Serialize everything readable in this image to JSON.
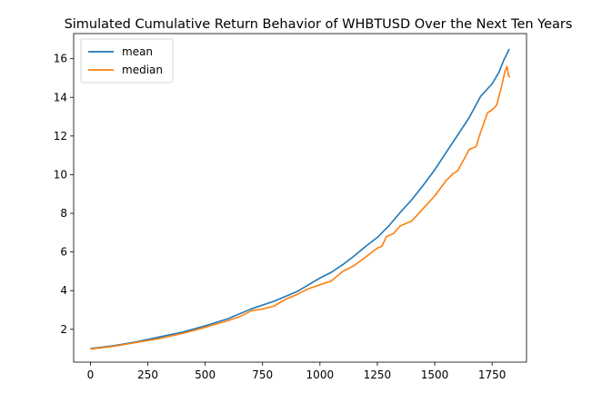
{
  "chart_data": {
    "type": "line",
    "title": "Simulated Cumulative Return Behavior of WHBTUSD Over the Next Ten Years",
    "xlabel": "",
    "ylabel": "",
    "xlim": [
      -73,
      1900
    ],
    "ylim": [
      0.3,
      17.3
    ],
    "xticks": [
      0,
      250,
      500,
      750,
      1000,
      1250,
      1500,
      1750
    ],
    "yticks": [
      2,
      4,
      6,
      8,
      10,
      12,
      14,
      16
    ],
    "grid": false,
    "legend": "top-left",
    "series": [
      {
        "name": "mean",
        "color": "#1f77b4",
        "points": [
          [
            0,
            1.0
          ],
          [
            100,
            1.15
          ],
          [
            200,
            1.35
          ],
          [
            300,
            1.6
          ],
          [
            400,
            1.85
          ],
          [
            500,
            2.18
          ],
          [
            600,
            2.55
          ],
          [
            700,
            3.05
          ],
          [
            800,
            3.45
          ],
          [
            900,
            3.95
          ],
          [
            1000,
            4.65
          ],
          [
            1050,
            4.95
          ],
          [
            1100,
            5.35
          ],
          [
            1150,
            5.8
          ],
          [
            1200,
            6.3
          ],
          [
            1250,
            6.75
          ],
          [
            1300,
            7.35
          ],
          [
            1350,
            8.05
          ],
          [
            1400,
            8.7
          ],
          [
            1450,
            9.45
          ],
          [
            1500,
            10.25
          ],
          [
            1550,
            11.15
          ],
          [
            1600,
            12.05
          ],
          [
            1650,
            12.95
          ],
          [
            1700,
            14.05
          ],
          [
            1750,
            14.7
          ],
          [
            1780,
            15.3
          ],
          [
            1800,
            15.9
          ],
          [
            1825,
            16.5
          ]
        ]
      },
      {
        "name": "median",
        "color": "#ff7f0e",
        "points": [
          [
            0,
            0.98
          ],
          [
            100,
            1.12
          ],
          [
            200,
            1.32
          ],
          [
            300,
            1.52
          ],
          [
            400,
            1.78
          ],
          [
            500,
            2.1
          ],
          [
            600,
            2.45
          ],
          [
            650,
            2.65
          ],
          [
            700,
            2.95
          ],
          [
            750,
            3.05
          ],
          [
            800,
            3.2
          ],
          [
            850,
            3.55
          ],
          [
            900,
            3.8
          ],
          [
            950,
            4.1
          ],
          [
            1000,
            4.3
          ],
          [
            1050,
            4.5
          ],
          [
            1100,
            5.0
          ],
          [
            1150,
            5.3
          ],
          [
            1200,
            5.75
          ],
          [
            1250,
            6.2
          ],
          [
            1270,
            6.3
          ],
          [
            1290,
            6.8
          ],
          [
            1320,
            6.95
          ],
          [
            1350,
            7.35
          ],
          [
            1400,
            7.6
          ],
          [
            1450,
            8.25
          ],
          [
            1500,
            8.9
          ],
          [
            1550,
            9.7
          ],
          [
            1580,
            10.05
          ],
          [
            1600,
            10.2
          ],
          [
            1630,
            10.85
          ],
          [
            1650,
            11.3
          ],
          [
            1680,
            11.45
          ],
          [
            1700,
            12.2
          ],
          [
            1730,
            13.2
          ],
          [
            1750,
            13.35
          ],
          [
            1770,
            13.6
          ],
          [
            1790,
            14.5
          ],
          [
            1805,
            15.3
          ],
          [
            1815,
            15.6
          ],
          [
            1822,
            15.1
          ],
          [
            1828,
            15.05
          ]
        ]
      }
    ]
  }
}
